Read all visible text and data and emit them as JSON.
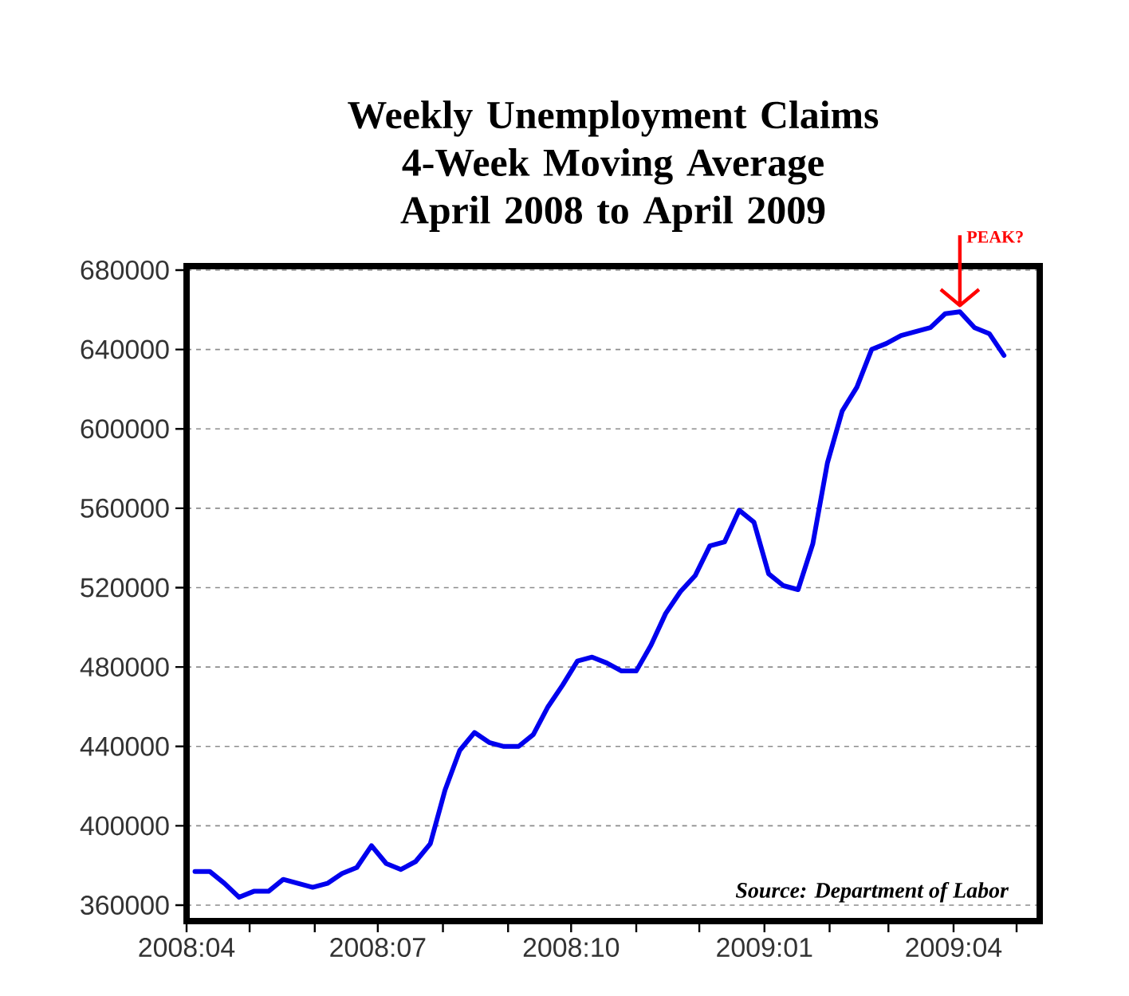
{
  "chart_data": {
    "type": "line",
    "title": "Weekly Unemployment Claims\n4-Week Moving Average\nApril 2008 to April 2009",
    "x": [
      "2008-04-05",
      "2008-04-12",
      "2008-04-19",
      "2008-04-26",
      "2008-05-03",
      "2008-05-10",
      "2008-05-17",
      "2008-05-24",
      "2008-05-31",
      "2008-06-07",
      "2008-06-14",
      "2008-06-21",
      "2008-06-28",
      "2008-07-05",
      "2008-07-12",
      "2008-07-19",
      "2008-07-26",
      "2008-08-02",
      "2008-08-09",
      "2008-08-16",
      "2008-08-23",
      "2008-08-30",
      "2008-09-06",
      "2008-09-13",
      "2008-09-20",
      "2008-09-27",
      "2008-10-04",
      "2008-10-11",
      "2008-10-18",
      "2008-10-25",
      "2008-11-01",
      "2008-11-08",
      "2008-11-15",
      "2008-11-22",
      "2008-11-29",
      "2008-12-06",
      "2008-12-13",
      "2008-12-20",
      "2008-12-27",
      "2009-01-03",
      "2009-01-10",
      "2009-01-17",
      "2009-01-24",
      "2009-01-31",
      "2009-02-07",
      "2009-02-14",
      "2009-02-21",
      "2009-02-28",
      "2009-03-07",
      "2009-03-14",
      "2009-03-21",
      "2009-03-28",
      "2009-04-04",
      "2009-04-11",
      "2009-04-18",
      "2009-04-25"
    ],
    "series": [
      {
        "color": "#0000ee",
        "values": [
          377000,
          377000,
          371000,
          364000,
          367000,
          367000,
          373000,
          371000,
          369000,
          371000,
          376000,
          379000,
          390000,
          381000,
          378000,
          382000,
          391000,
          418000,
          438000,
          447000,
          442000,
          440000,
          440000,
          446000,
          460000,
          471000,
          483000,
          485000,
          482000,
          478000,
          478000,
          491000,
          507000,
          518000,
          526000,
          541000,
          543000,
          559000,
          553000,
          527000,
          521000,
          519000,
          542000,
          583000,
          609000,
          621000,
          640000,
          643000,
          647000,
          649000,
          651000,
          658000,
          659000,
          651000,
          648000,
          637000
        ]
      }
    ],
    "xlim": [
      "2008-04-01",
      "2009-05-12"
    ],
    "xticks": [
      {
        "value": "2008-04-01",
        "label": "2008:04"
      },
      {
        "value": "2008-05-01",
        "label": null
      },
      {
        "value": "2008-06-01",
        "label": null
      },
      {
        "value": "2008-07-01",
        "label": "2008:07"
      },
      {
        "value": "2008-08-01",
        "label": null
      },
      {
        "value": "2008-09-01",
        "label": null
      },
      {
        "value": "2008-10-01",
        "label": "2008:10"
      },
      {
        "value": "2008-11-01",
        "label": null
      },
      {
        "value": "2008-12-01",
        "label": null
      },
      {
        "value": "2009-01-01",
        "label": "2009:01"
      },
      {
        "value": "2009-02-01",
        "label": null
      },
      {
        "value": "2009-03-01",
        "label": null
      },
      {
        "value": "2009-04-01",
        "label": "2009:04"
      },
      {
        "value": "2009-05-01",
        "label": null
      }
    ],
    "ylim": [
      352000,
      682000
    ],
    "yticks": [
      360000,
      400000,
      440000,
      480000,
      520000,
      560000,
      600000,
      640000,
      680000
    ],
    "grid": "y",
    "marker": "none",
    "line_style": "solid",
    "annotations": [
      "PEAK?",
      "Source: Department of Labor"
    ]
  }
}
